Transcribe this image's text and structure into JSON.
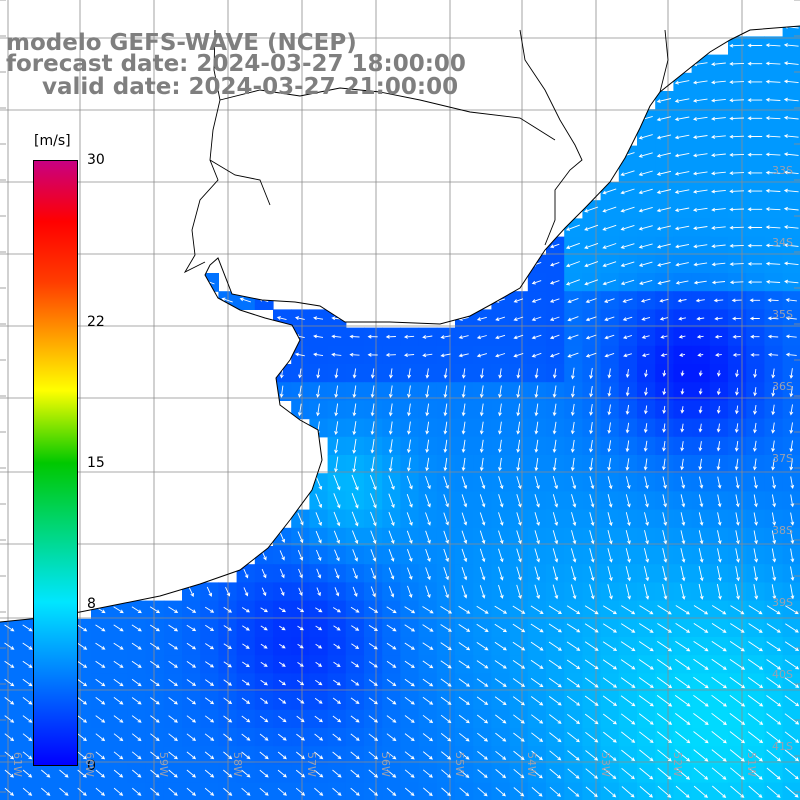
{
  "title": {
    "model": "modelo GEFS-WAVE (NCEP)",
    "forecast": "forecast date: 2024-03-27 18:00:00",
    "valid": "valid date: 2024-03-27 21:00:00"
  },
  "colorbar": {
    "unit": "[m/s]",
    "ticks": [
      "30",
      "22",
      "15",
      "8",
      "0"
    ],
    "tick_values": [
      30,
      22,
      15,
      8,
      0
    ],
    "min": 0,
    "max": 30
  },
  "lat_labels": [
    "33S",
    "34S",
    "35S",
    "36S",
    "37S",
    "38S",
    "39S",
    "40S",
    "41S"
  ],
  "lon_labels": [
    "61W",
    "60W",
    "59W",
    "58W",
    "57W",
    "56W",
    "55W",
    "54W",
    "53W",
    "52W",
    "51W"
  ],
  "colors": {
    "land": "#ffffff",
    "grid": "#8c8c8c",
    "coast": "#000000",
    "arrow": "#ffffff",
    "title": "#7f7f7f",
    "label": "#9aa0b0"
  },
  "field": {
    "description_units": "m/s",
    "max_over_sea": 8,
    "calm_center_value": 0.5,
    "strong_south_value": 7.5
  }
}
